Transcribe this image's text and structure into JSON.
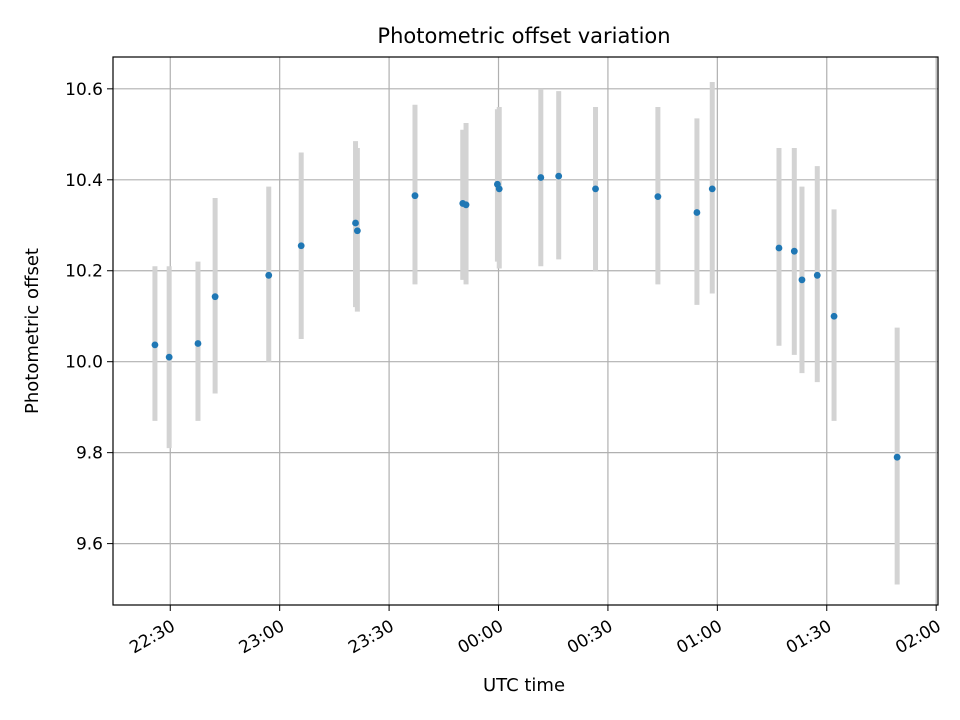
{
  "chart_data": {
    "type": "scatter",
    "title": "Photometric offset variation",
    "xlabel": "UTC time",
    "ylabel": "Photometric offset",
    "x_unit": "minutes",
    "x_ticks": [
      {
        "t": 1350,
        "label": "22:30"
      },
      {
        "t": 1380,
        "label": "23:00"
      },
      {
        "t": 1410,
        "label": "23:30"
      },
      {
        "t": 1440,
        "label": "00:00"
      },
      {
        "t": 1470,
        "label": "00:30"
      },
      {
        "t": 1500,
        "label": "01:00"
      },
      {
        "t": 1530,
        "label": "01:30"
      },
      {
        "t": 1560,
        "label": "02:00"
      }
    ],
    "y_ticks": [
      9.6,
      9.8,
      10.0,
      10.2,
      10.4,
      10.6
    ],
    "xlim": [
      1334.3,
      1560.5
    ],
    "ylim": [
      9.465,
      10.67
    ],
    "grid": true,
    "colors": {
      "point": "#1f77b4",
      "errorbar": "#d3d3d3",
      "grid": "#b0b0b0"
    },
    "points": [
      {
        "time": "22:25:48",
        "y": 10.037,
        "low": 9.87,
        "high": 10.21
      },
      {
        "time": "22:29:42",
        "y": 10.01,
        "low": 9.81,
        "high": 10.21
      },
      {
        "time": "22:37:36",
        "y": 10.04,
        "low": 9.87,
        "high": 10.22
      },
      {
        "time": "22:42:18",
        "y": 10.143,
        "low": 9.93,
        "high": 10.36
      },
      {
        "time": "22:57:00",
        "y": 10.19,
        "low": 10.0,
        "high": 10.385
      },
      {
        "time": "23:05:54",
        "y": 10.255,
        "low": 10.05,
        "high": 10.46
      },
      {
        "time": "23:20:48",
        "y": 10.305,
        "low": 10.12,
        "high": 10.485
      },
      {
        "time": "23:21:18",
        "y": 10.288,
        "low": 10.11,
        "high": 10.47
      },
      {
        "time": "23:37:06",
        "y": 10.365,
        "low": 10.17,
        "high": 10.565
      },
      {
        "time": "23:50:12",
        "y": 10.348,
        "low": 10.18,
        "high": 10.51
      },
      {
        "time": "23:51:06",
        "y": 10.345,
        "low": 10.17,
        "high": 10.525
      },
      {
        "time": "23:59:42",
        "y": 10.39,
        "low": 10.22,
        "high": 10.555
      },
      {
        "time": "00:00:12",
        "y": 10.38,
        "low": 10.205,
        "high": 10.56
      },
      {
        "time": "00:11:36",
        "y": 10.405,
        "low": 10.21,
        "high": 10.6
      },
      {
        "time": "00:16:30",
        "y": 10.408,
        "low": 10.225,
        "high": 10.595
      },
      {
        "time": "00:26:36",
        "y": 10.38,
        "low": 10.2,
        "high": 10.56
      },
      {
        "time": "00:43:42",
        "y": 10.363,
        "low": 10.17,
        "high": 10.56
      },
      {
        "time": "00:54:24",
        "y": 10.328,
        "low": 10.125,
        "high": 10.535
      },
      {
        "time": "00:58:36",
        "y": 10.38,
        "low": 10.15,
        "high": 10.615
      },
      {
        "time": "01:16:54",
        "y": 10.25,
        "low": 10.035,
        "high": 10.47
      },
      {
        "time": "01:21:06",
        "y": 10.243,
        "low": 10.015,
        "high": 10.47
      },
      {
        "time": "01:23:12",
        "y": 10.18,
        "low": 9.975,
        "high": 10.385
      },
      {
        "time": "01:27:24",
        "y": 10.19,
        "low": 9.955,
        "high": 10.43
      },
      {
        "time": "01:32:00",
        "y": 10.1,
        "low": 9.87,
        "high": 10.335
      },
      {
        "time": "01:49:18",
        "y": 9.79,
        "low": 9.51,
        "high": 10.075
      }
    ]
  }
}
